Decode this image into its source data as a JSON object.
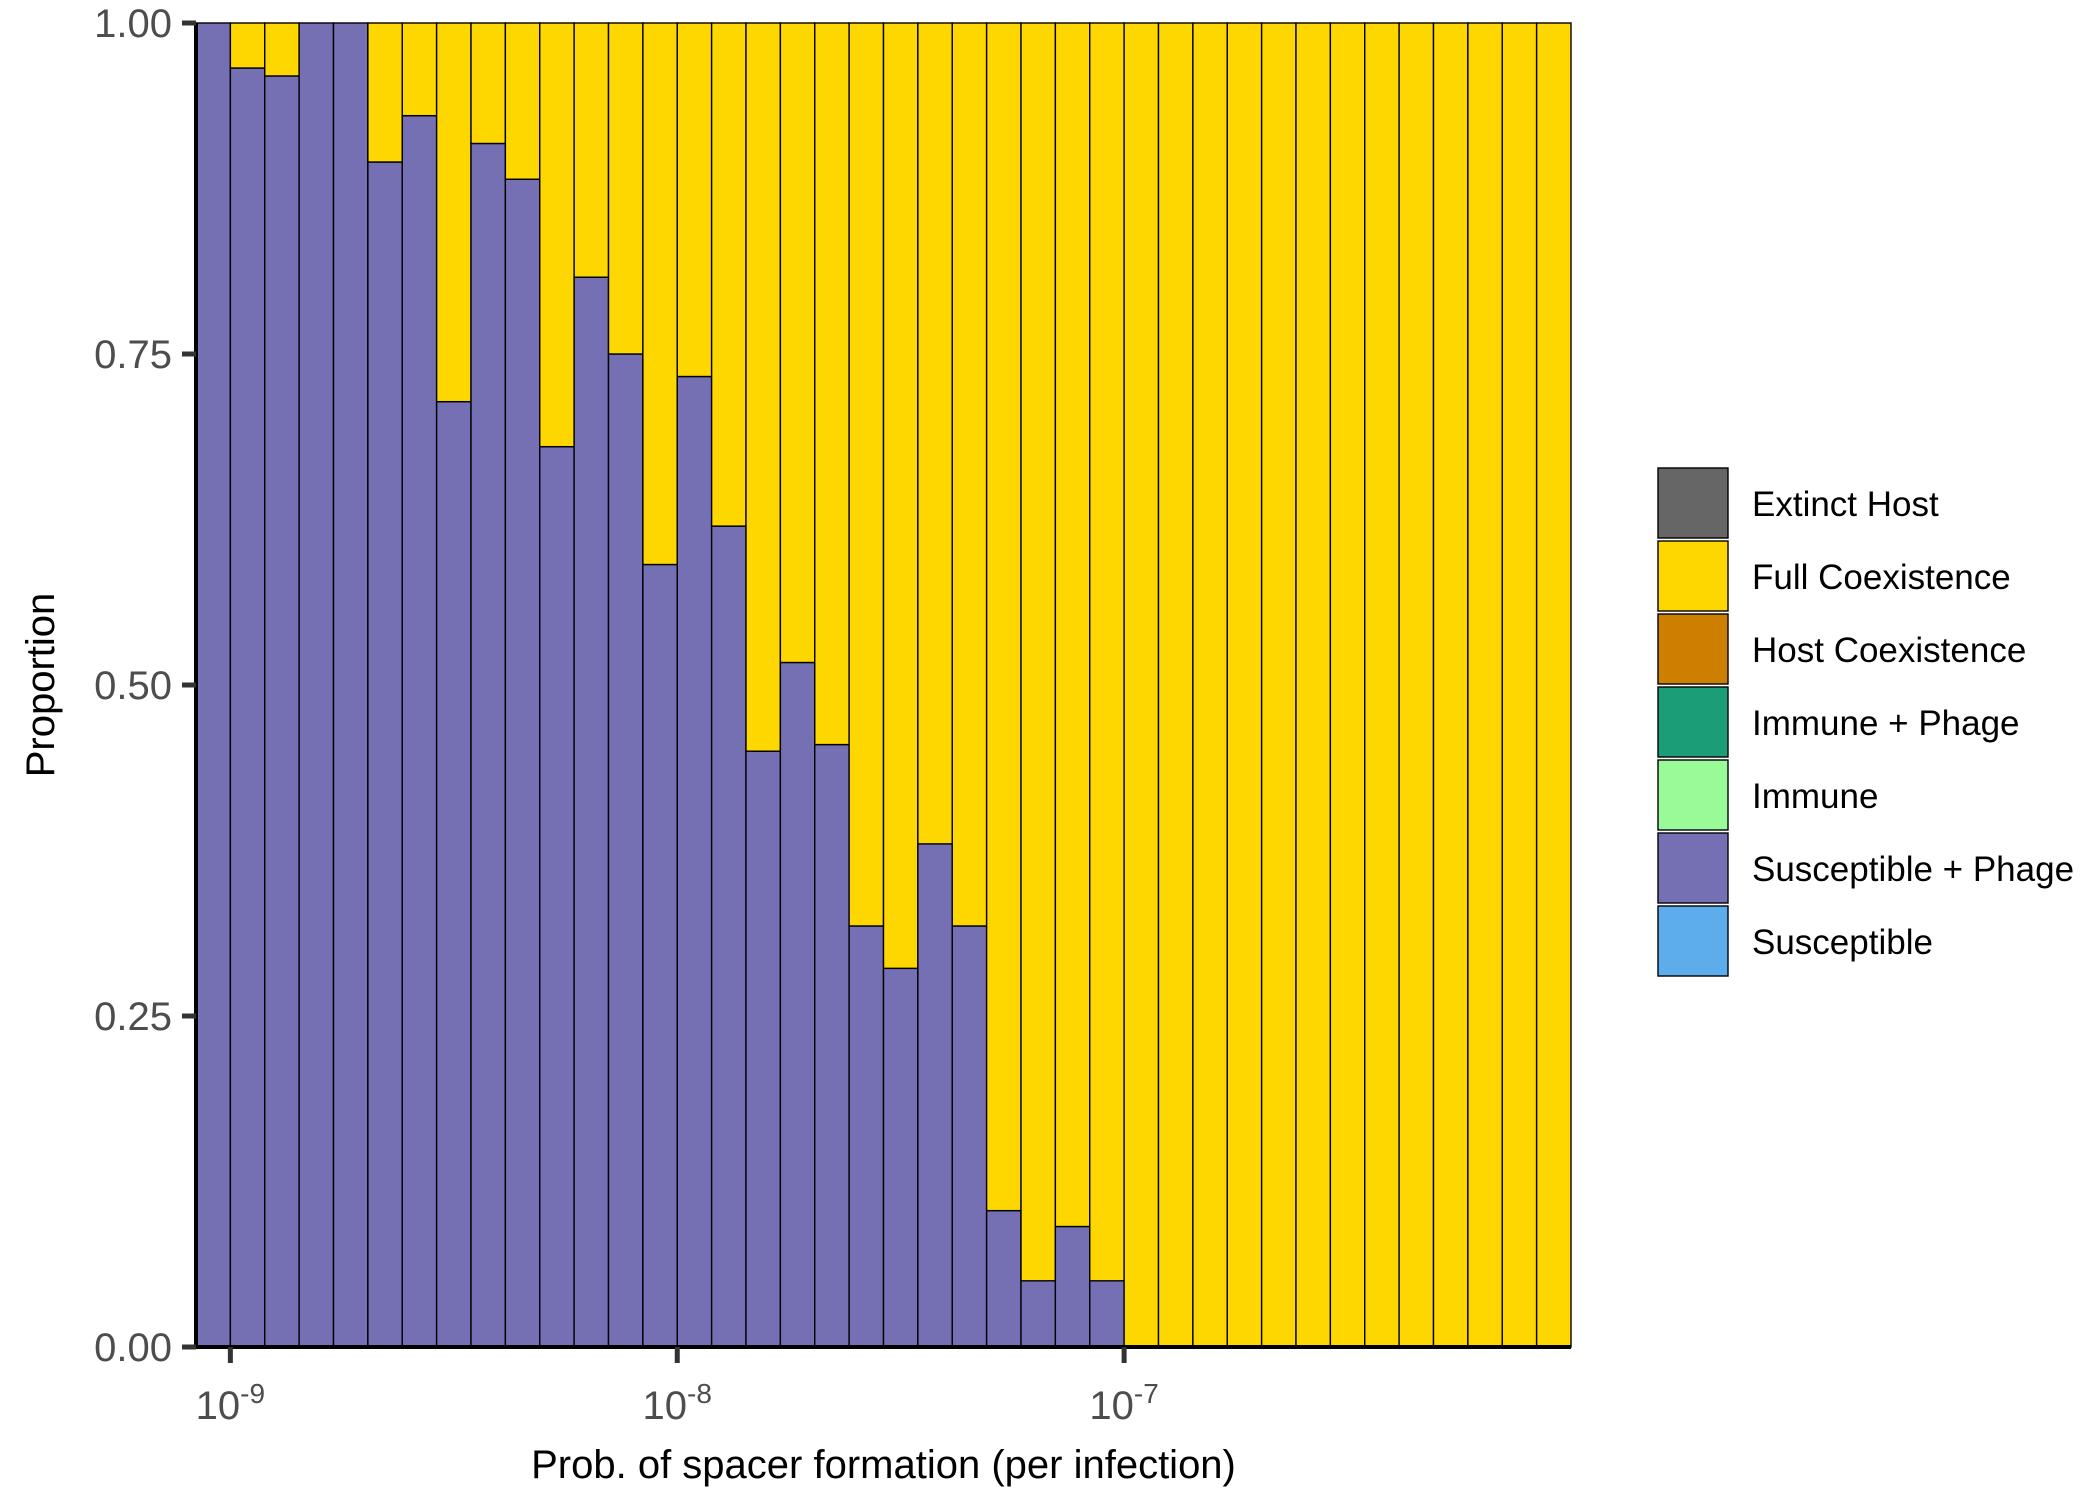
{
  "chart_data": {
    "type": "bar",
    "stacked": true,
    "xlabel": "Prob. of spacer formation (per infection)",
    "ylabel": "Proportion",
    "ylim": [
      0,
      1
    ],
    "y_ticks": [
      "0.00",
      "0.25",
      "0.50",
      "0.75",
      "1.00"
    ],
    "x_ticks": [
      {
        "base": "10",
        "exp": "-9",
        "bin": 1
      },
      {
        "base": "10",
        "exp": "-8",
        "bin": 14
      },
      {
        "base": "10",
        "exp": "-7",
        "bin": 27
      }
    ],
    "legend": {
      "position": "right",
      "entries": [
        {
          "name": "Extinct Host",
          "color": "#666666"
        },
        {
          "name": "Full Coexistence",
          "color": "#FFD700"
        },
        {
          "name": "Host Coexistence",
          "color": "#CC7F00"
        },
        {
          "name": "Immune + Phage",
          "color": "#1B9E77"
        },
        {
          "name": "Immune",
          "color": "#98FB98"
        },
        {
          "name": "Susceptible + Phage",
          "color": "#7570B3"
        },
        {
          "name": "Susceptible",
          "color": "#5DADEC"
        }
      ]
    },
    "series": [
      {
        "name": "Susceptible + Phage",
        "color": "#7570B3",
        "values": [
          1.0,
          0.966,
          0.96,
          1.0,
          1.0,
          0.895,
          0.93,
          0.714,
          0.909,
          0.882,
          0.68,
          0.808,
          0.75,
          0.591,
          0.733,
          0.62,
          0.45,
          0.517,
          0.455,
          0.318,
          0.286,
          0.38,
          0.318,
          0.103,
          0.05,
          0.091,
          0.05,
          0,
          0,
          0,
          0,
          0,
          0,
          0,
          0,
          0,
          0,
          0,
          0,
          0
        ]
      },
      {
        "name": "Full Coexistence",
        "color": "#FFD700",
        "values": [
          0.0,
          0.034,
          0.04,
          0.0,
          0.0,
          0.105,
          0.07,
          0.286,
          0.091,
          0.118,
          0.32,
          0.192,
          0.25,
          0.409,
          0.267,
          0.38,
          0.55,
          0.483,
          0.545,
          0.682,
          0.714,
          0.62,
          0.682,
          0.897,
          0.95,
          0.909,
          0.95,
          1,
          1,
          1,
          1,
          1,
          1,
          1,
          1,
          1,
          1,
          1,
          1,
          1
        ]
      }
    ]
  }
}
